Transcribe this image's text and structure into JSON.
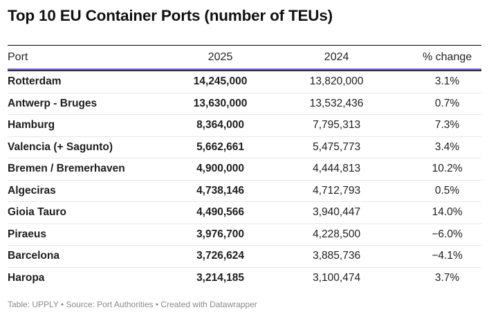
{
  "title": "Top 10 EU Container Ports (number of TEUs)",
  "colors": {
    "header_rule": "#7a63c9",
    "header_rule_top": "#2b2b4a"
  },
  "chart_data": {
    "type": "table",
    "title": "Top 10 EU Container Ports (number of TEUs)",
    "columns": [
      "Port",
      "2025",
      "2024",
      "% change"
    ],
    "rows": [
      [
        "Rotterdam",
        "14,245,000",
        "13,820,000",
        "3.1%"
      ],
      [
        "Antwerp - Bruges",
        "13,630,000",
        "13,532,436",
        "0.7%"
      ],
      [
        "Hamburg",
        "8,364,000",
        "7,795,313",
        "7.3%"
      ],
      [
        "Valencia (+ Sagunto)",
        "5,662,661",
        "5,475,773",
        "3.4%"
      ],
      [
        "Bremen / Bremerhaven",
        "4,900,000",
        "4,444,813",
        "10.2%"
      ],
      [
        "Algeciras",
        "4,738,146",
        "4,712,793",
        "0.5%"
      ],
      [
        "Gioia Tauro",
        "4,490,566",
        "3,940,447",
        "14.0%"
      ],
      [
        "Piraeus",
        "3,976,700",
        "4,228,500",
        "−6.0%"
      ],
      [
        "Barcelona",
        "3,726,624",
        "3,885,736",
        "−4.1%"
      ],
      [
        "Haropa",
        "3,214,185",
        "3,100,474",
        "3.7%"
      ]
    ]
  },
  "footer": "Table: UPPLY • Source: Port Authorities • Created with Datawrapper"
}
